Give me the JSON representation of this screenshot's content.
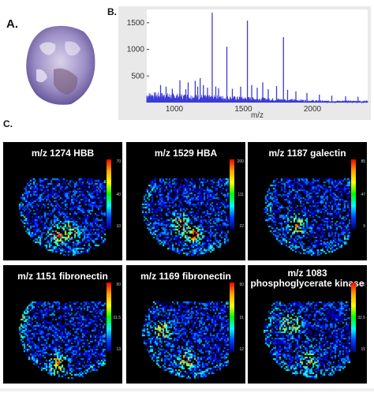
{
  "labels": {
    "a": "A.",
    "b": "B.",
    "c": "C."
  },
  "spectrum": {
    "xlabel": "m/z",
    "x_ticks": [
      "1000",
      "1500",
      "2000"
    ],
    "y_ticks": [
      "500",
      "1000",
      "1500"
    ],
    "line_color": "#3b3bd8",
    "axis_bg": "#e9e9e9"
  },
  "chart_data": {
    "type": "line",
    "xlabel": "m/z",
    "ylabel": "",
    "xlim": [
      800,
      2400
    ],
    "ylim": [
      0,
      1750
    ],
    "peaks": [
      {
        "x": 900,
        "y": 330
      },
      {
        "x": 940,
        "y": 300
      },
      {
        "x": 985,
        "y": 260
      },
      {
        "x": 1040,
        "y": 420
      },
      {
        "x": 1083,
        "y": 250
      },
      {
        "x": 1100,
        "y": 380
      },
      {
        "x": 1151,
        "y": 410
      },
      {
        "x": 1169,
        "y": 300
      },
      {
        "x": 1187,
        "y": 460
      },
      {
        "x": 1210,
        "y": 330
      },
      {
        "x": 1240,
        "y": 280
      },
      {
        "x": 1274,
        "y": 1690
      },
      {
        "x": 1300,
        "y": 300
      },
      {
        "x": 1320,
        "y": 270
      },
      {
        "x": 1380,
        "y": 1050
      },
      {
        "x": 1420,
        "y": 260
      },
      {
        "x": 1480,
        "y": 300
      },
      {
        "x": 1529,
        "y": 1540
      },
      {
        "x": 1560,
        "y": 330
      },
      {
        "x": 1600,
        "y": 280
      },
      {
        "x": 1640,
        "y": 380
      },
      {
        "x": 1680,
        "y": 250
      },
      {
        "x": 1740,
        "y": 310
      },
      {
        "x": 1790,
        "y": 1230
      },
      {
        "x": 1820,
        "y": 240
      },
      {
        "x": 1880,
        "y": 210
      },
      {
        "x": 1960,
        "y": 180
      },
      {
        "x": 2050,
        "y": 150
      },
      {
        "x": 2140,
        "y": 130
      },
      {
        "x": 2240,
        "y": 120
      },
      {
        "x": 2330,
        "y": 110
      }
    ],
    "baseline": 120
  },
  "images": [
    {
      "title": "m/z 1274 HBB",
      "scale": [
        "70",
        "40",
        "10"
      ],
      "hot": [
        [
          0.45,
          0.78
        ],
        [
          0.55,
          0.75
        ]
      ]
    },
    {
      "title": "m/z 1529 HBA",
      "scale": [
        "200",
        "111",
        "22"
      ],
      "hot": [
        [
          0.55,
          0.78
        ],
        [
          0.45,
          0.68
        ]
      ]
    },
    {
      "title": "m/z 1187 galectin",
      "scale": [
        "85",
        "47",
        "9"
      ],
      "hot": [
        [
          0.4,
          0.7
        ]
      ]
    },
    {
      "title": "m/z 1151 fibronectin",
      "scale": [
        "50",
        "31.5",
        "13"
      ],
      "hot": [
        [
          0.1,
          0.42
        ],
        [
          0.45,
          0.82
        ]
      ]
    },
    {
      "title": "m/z 1169 fibronectin",
      "scale": [
        "50",
        "31",
        "12"
      ],
      "hot": [
        [
          0.5,
          0.8
        ],
        [
          0.3,
          0.55
        ]
      ]
    },
    {
      "title": "m/z 1083 phosphoglycerate kinase",
      "scale": [
        "50",
        "32.5",
        "15"
      ],
      "hot": [
        [
          0.5,
          0.8
        ],
        [
          0.35,
          0.5
        ]
      ]
    }
  ],
  "colors": {
    "background": "#000000",
    "tissue_purple": "#6c5aa8"
  }
}
